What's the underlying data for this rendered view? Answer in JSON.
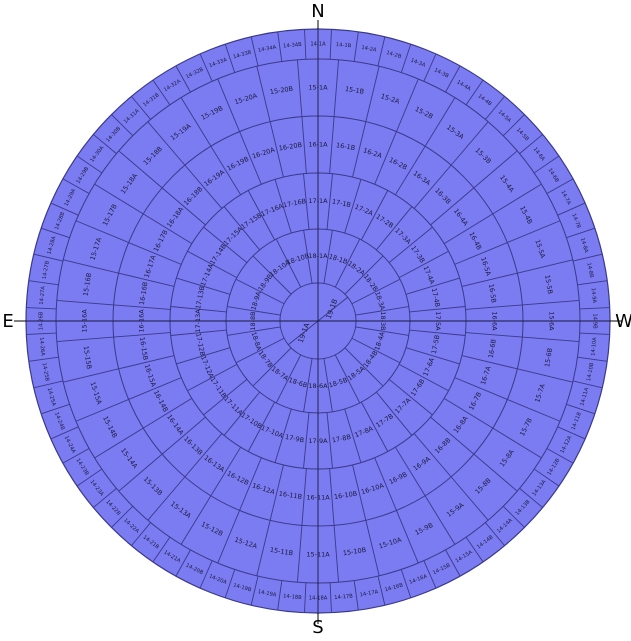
{
  "colors": {
    "disk": "#7b7bf2",
    "lines": "#3a3a8a",
    "text": "#1a1a3a",
    "axis": "#000000"
  },
  "directions": {
    "north": "N",
    "south": "S",
    "east": "E",
    "west": "W"
  },
  "caption": "",
  "center_labels": [
    "19-1A",
    "19-1B"
  ],
  "ring_1": [
    "18-1A",
    "18-1B",
    "18-2A",
    "18-2B",
    "18-3A",
    "18-3B",
    "18-4A",
    "18-4B",
    "18-5A",
    "18-5B",
    "18-6A",
    "18-6B",
    "18-7A",
    "18-7B",
    "18-8A",
    "18-8B",
    "18-9A",
    "18-9B",
    "18-10A",
    "18-10B"
  ],
  "ring_2": [
    "17-1A",
    "17-1B",
    "17-2A",
    "17-2B",
    "17-3A",
    "17-3B",
    "17-4A",
    "17-4B",
    "17-5A",
    "17-5B",
    "17-6A",
    "17-6B",
    "17-7A",
    "17-7B",
    "17-8A",
    "17-8B",
    "17-9A",
    "17-9B",
    "17-10A",
    "17-10B",
    "17-11A",
    "17-11B",
    "17-12A",
    "17-12B",
    "17-13A",
    "17-13B",
    "17-14A",
    "17-14B",
    "17-15A",
    "17-15B",
    "17-16A",
    "17-16B"
  ],
  "ring_3": [
    "16-1A",
    "16-1B",
    "16-2A",
    "16-2B",
    "16-3A",
    "16-3B",
    "16-4A",
    "16-4B",
    "16-5A",
    "16-5B",
    "16-6A",
    "16-6B",
    "16-7A",
    "16-7B",
    "16-8A",
    "16-8B",
    "16-9A",
    "16-9B",
    "16-10A",
    "16-10B",
    "16-11A",
    "16-11B",
    "16-12A",
    "16-12B",
    "16-13A",
    "16-13B",
    "16-14A",
    "16-14B",
    "16-15A",
    "16-15B",
    "16-16A",
    "16-16B",
    "16-17A",
    "16-17B",
    "16-18A",
    "16-18B",
    "16-19A",
    "16-19B",
    "16-20A",
    "16-20B"
  ],
  "ring_4": [
    "15-1A",
    "15-1B",
    "15-2A",
    "15-2B",
    "15-3A",
    "15-3B",
    "15-4A",
    "15-4B",
    "15-5A",
    "15-5B",
    "15-6A",
    "15-6B",
    "15-7A",
    "15-7B",
    "15-8A",
    "15-8B",
    "15-9A",
    "15-9B",
    "15-10A",
    "15-10B",
    "15-11A",
    "15-11B",
    "15-12A",
    "15-12B",
    "15-13A",
    "15-13B",
    "15-14A",
    "15-14B",
    "15-15A",
    "15-15B",
    "15-16A",
    "15-16B",
    "15-17A",
    "15-17B",
    "15-18A",
    "15-18B",
    "15-19A",
    "15-19B",
    "15-20A",
    "15-20B"
  ],
  "ring_5": [
    "14-1A",
    "14-1B",
    "14-2A",
    "14-2B",
    "14-3A",
    "14-3B",
    "14-4A",
    "14-4B",
    "14-5A",
    "14-5B",
    "14-6A",
    "14-6B",
    "14-7A",
    "14-7B",
    "14-8A",
    "14-8B",
    "14-9A",
    "14-9B",
    "14-10A",
    "14-10B",
    "14-11A",
    "14-11B",
    "14-12A",
    "14-12B",
    "14-13A",
    "14-13B",
    "14-14A",
    "14-14B",
    "14-15A",
    "14-15B",
    "14-16A",
    "14-16B",
    "14-17A",
    "14-17B",
    "14-18A",
    "14-18B",
    "14-19A",
    "14-19B",
    "14-20A",
    "14-20B",
    "14-21A",
    "14-21B",
    "14-22A",
    "14-22B",
    "14-23A",
    "14-23B",
    "14-24A",
    "14-24B",
    "14-25A",
    "14-25B",
    "14-26A",
    "14-26B",
    "14-27A",
    "14-27B",
    "14-28A",
    "14-28B",
    "14-29A",
    "14-29B",
    "14-30A",
    "14-30B",
    "14-31A",
    "14-31B",
    "14-32A",
    "14-32B",
    "14-33A",
    "14-33B",
    "14-34A",
    "14-34B"
  ]
}
